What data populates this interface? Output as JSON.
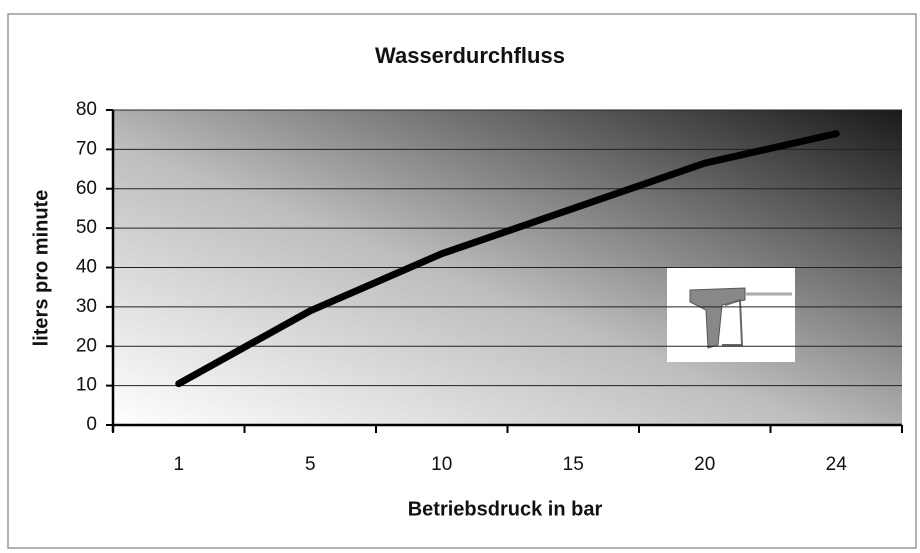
{
  "chart_data": {
    "type": "line",
    "title": "Wasserdurchfluss",
    "x_label": "Betriebsdruck in bar",
    "y_label": "liters pro minute",
    "categories": [
      "1",
      "5",
      "10",
      "15",
      "20",
      "24"
    ],
    "values": [
      10.5,
      29,
      43.5,
      55,
      66.5,
      74
    ],
    "color": "#000000",
    "ylim": [
      0,
      80
    ],
    "yticks": [
      0,
      10,
      20,
      30,
      40,
      50,
      60,
      70,
      80
    ],
    "grid": true
  }
}
